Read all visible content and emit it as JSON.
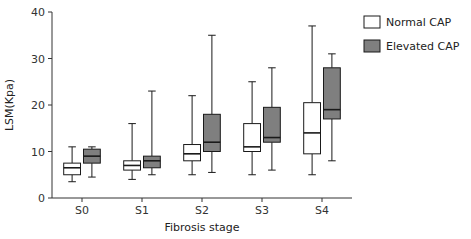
{
  "chart_data": {
    "type": "box",
    "xlabel": "Fibrosis stage",
    "ylabel": "LSM(Kpa)",
    "categories": [
      "S0",
      "S1",
      "S2",
      "S3",
      "S4"
    ],
    "series": [
      {
        "name": "Normal CAP",
        "color": "#ffffff",
        "whisker_low": [
          3.5,
          4.0,
          5.0,
          5.0,
          5.0
        ],
        "q1": [
          5.0,
          6.0,
          8.0,
          10.0,
          9.5
        ],
        "median": [
          6.5,
          7.0,
          9.5,
          11.0,
          14.0
        ],
        "q3": [
          7.5,
          8.0,
          11.5,
          16.0,
          20.5
        ],
        "whisker_high": [
          11.0,
          16.0,
          22.0,
          25.0,
          37.0
        ]
      },
      {
        "name": "Elevated CAP",
        "color": "#7f7f7f",
        "whisker_low": [
          4.5,
          5.0,
          5.5,
          6.0,
          8.0
        ],
        "q1": [
          7.5,
          6.5,
          10.0,
          12.0,
          17.0
        ],
        "median": [
          9.0,
          8.0,
          12.0,
          13.0,
          19.0
        ],
        "q3": [
          10.5,
          9.0,
          18.0,
          19.5,
          28.0
        ],
        "whisker_high": [
          11.0,
          23.0,
          35.0,
          28.0,
          31.0
        ]
      }
    ],
    "ylim": [
      0,
      40
    ],
    "yticks": [
      0,
      10,
      20,
      30,
      40
    ],
    "grid": false,
    "legend": "right"
  }
}
